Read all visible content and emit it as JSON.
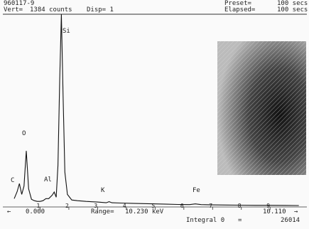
{
  "header": {
    "id": "960117-9",
    "vert": "Vert=",
    "counts": "1384 counts",
    "disp": "Disp= 1",
    "preset": "Preset=",
    "preset_time": "100 secs",
    "elapsed": "Elapsed=",
    "elapsed_time": "100 secs"
  },
  "footer": {
    "left_arrow": "←",
    "start": "0.000",
    "range": "Range=",
    "range_value": "10.230 keV",
    "cursor": "10.110",
    "right_arrow": "→",
    "integral": "Integral 0",
    "equals": "=",
    "integral_value": "26014"
  },
  "chart_data": {
    "type": "line",
    "color": "#111",
    "x": [
      0.1,
      0.2,
      0.28,
      0.36,
      0.44,
      0.52,
      0.6,
      0.7,
      0.8,
      0.9,
      1.0,
      1.1,
      1.2,
      1.3,
      1.42,
      1.49,
      1.56,
      1.62,
      1.68,
      1.74,
      1.8,
      1.86,
      1.95,
      2.1,
      2.3,
      2.6,
      3.0,
      3.3,
      3.4,
      3.5,
      3.8,
      4.2,
      4.6,
      5.0,
      5.4,
      5.8,
      6.2,
      6.4,
      6.6,
      7.0,
      7.5,
      8.0,
      8.5,
      9.0,
      9.5,
      10.0
    ],
    "values": [
      60,
      110,
      168,
      90,
      150,
      403,
      130,
      55,
      45,
      40,
      40,
      45,
      60,
      60,
      85,
      107,
      70,
      300,
      900,
      1384,
      800,
      250,
      90,
      50,
      45,
      40,
      35,
      30,
      38,
      30,
      28,
      26,
      24,
      22,
      20,
      18,
      17,
      22,
      17,
      15,
      14,
      13,
      12,
      12,
      11,
      10
    ],
    "xlim": [
      0,
      10.23
    ],
    "ylim": [
      0,
      1384
    ],
    "xticks": [
      1,
      2,
      3,
      4,
      5,
      6,
      7,
      8,
      9
    ],
    "annotations": [
      "Si",
      "O",
      "C",
      "Al",
      "K",
      "Fe"
    ]
  }
}
